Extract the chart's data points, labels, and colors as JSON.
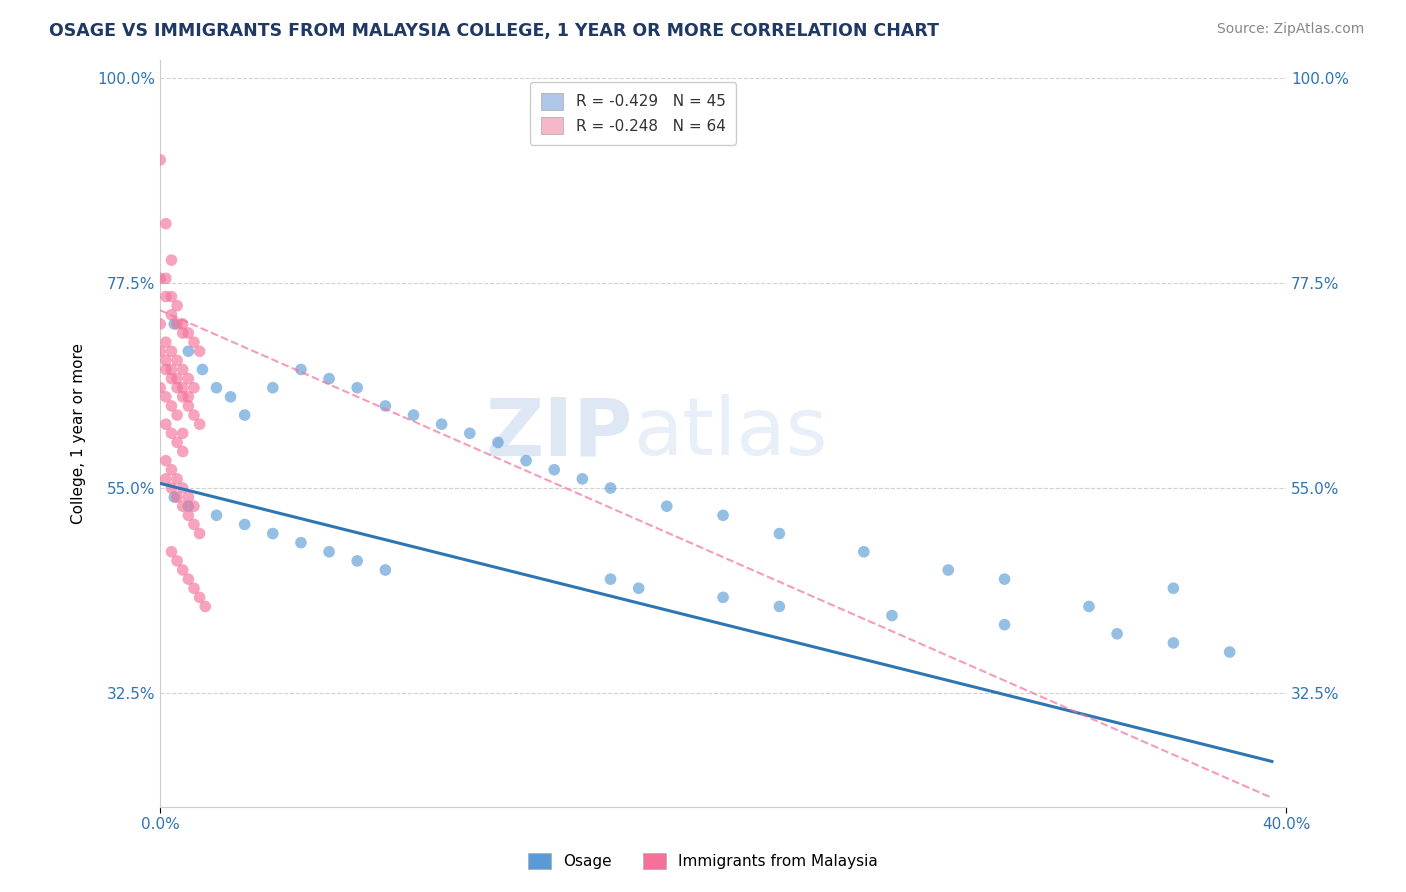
{
  "title": "OSAGE VS IMMIGRANTS FROM MALAYSIA COLLEGE, 1 YEAR OR MORE CORRELATION CHART",
  "source_text": "Source: ZipAtlas.com",
  "ylabel": "College, 1 year or more",
  "xlim": [
    0.0,
    0.4
  ],
  "ylim": [
    0.2,
    1.02
  ],
  "ytick_values": [
    1.0,
    0.775,
    0.55,
    0.325
  ],
  "xtick_values": [
    0.0,
    0.4
  ],
  "legend_entries": [
    {
      "label": "R = -0.429   N = 45",
      "color": "#aec6e8"
    },
    {
      "label": "R = -0.248   N = 64",
      "color": "#f4b8c8"
    }
  ],
  "osage_scatter_x": [
    0.005,
    0.01,
    0.015,
    0.02,
    0.025,
    0.03,
    0.04,
    0.05,
    0.06,
    0.07,
    0.08,
    0.09,
    0.1,
    0.11,
    0.12,
    0.13,
    0.14,
    0.15,
    0.16,
    0.18,
    0.2,
    0.22,
    0.25,
    0.28,
    0.3,
    0.005,
    0.01,
    0.02,
    0.03,
    0.04,
    0.05,
    0.06,
    0.07,
    0.08,
    0.16,
    0.17,
    0.2,
    0.22,
    0.26,
    0.3,
    0.34,
    0.36,
    0.38,
    0.36,
    0.33
  ],
  "osage_scatter_y": [
    0.73,
    0.7,
    0.68,
    0.66,
    0.65,
    0.63,
    0.66,
    0.68,
    0.67,
    0.66,
    0.64,
    0.63,
    0.62,
    0.61,
    0.6,
    0.58,
    0.57,
    0.56,
    0.55,
    0.53,
    0.52,
    0.5,
    0.48,
    0.46,
    0.45,
    0.54,
    0.53,
    0.52,
    0.51,
    0.5,
    0.49,
    0.48,
    0.47,
    0.46,
    0.45,
    0.44,
    0.43,
    0.42,
    0.41,
    0.4,
    0.39,
    0.38,
    0.37,
    0.44,
    0.42
  ],
  "malaysia_scatter_x": [
    0.0,
    0.002,
    0.004,
    0.006,
    0.008,
    0.0,
    0.002,
    0.004,
    0.006,
    0.008,
    0.01,
    0.012,
    0.002,
    0.004,
    0.006,
    0.008,
    0.01,
    0.012,
    0.014,
    0.0,
    0.002,
    0.004,
    0.006,
    0.008,
    0.01,
    0.002,
    0.004,
    0.006,
    0.008,
    0.01,
    0.012,
    0.014,
    0.0,
    0.002,
    0.004,
    0.006,
    0.008,
    0.002,
    0.004,
    0.006,
    0.008,
    0.0,
    0.002,
    0.004,
    0.002,
    0.004,
    0.006,
    0.008,
    0.01,
    0.012,
    0.002,
    0.004,
    0.006,
    0.008,
    0.01,
    0.012,
    0.014,
    0.004,
    0.006,
    0.008,
    0.01,
    0.012,
    0.014,
    0.016
  ],
  "malaysia_scatter_y": [
    0.78,
    0.76,
    0.74,
    0.73,
    0.72,
    0.73,
    0.71,
    0.7,
    0.69,
    0.68,
    0.67,
    0.66,
    0.78,
    0.76,
    0.75,
    0.73,
    0.72,
    0.71,
    0.7,
    0.7,
    0.69,
    0.68,
    0.67,
    0.66,
    0.65,
    0.68,
    0.67,
    0.66,
    0.65,
    0.64,
    0.63,
    0.62,
    0.66,
    0.65,
    0.64,
    0.63,
    0.61,
    0.62,
    0.61,
    0.6,
    0.59,
    0.91,
    0.84,
    0.8,
    0.58,
    0.57,
    0.56,
    0.55,
    0.54,
    0.53,
    0.56,
    0.55,
    0.54,
    0.53,
    0.52,
    0.51,
    0.5,
    0.48,
    0.47,
    0.46,
    0.45,
    0.44,
    0.43,
    0.42
  ],
  "osage_line_x": [
    0.0,
    0.395
  ],
  "osage_line_y": [
    0.555,
    0.25
  ],
  "malaysia_line_x": [
    0.0,
    0.395
  ],
  "malaysia_line_y": [
    0.745,
    0.21
  ],
  "osage_color": "#5b9bd5",
  "malaysia_color": "#f4729a",
  "osage_line_color": "#2e75b6",
  "malaysia_line_color": "#f4729a",
  "watermark_zip": "ZIP",
  "watermark_atlas": "atlas",
  "background_color": "#ffffff",
  "grid_color": "#cccccc"
}
